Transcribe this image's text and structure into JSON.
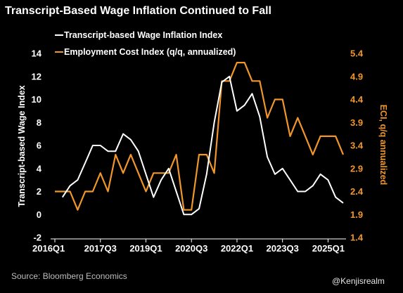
{
  "title": "Transcript-Based Wage Inflation Continued to Fall",
  "source": "Source: Bloomberg Economics",
  "watermark": "@Kenjisrealm",
  "colors": {
    "wage": "#ffffff",
    "eci": "#f0962a",
    "background": "#000000"
  },
  "chart_data": {
    "type": "line",
    "title": "Transcript-Based Wage Inflation Continued to Fall",
    "x_tick_labels": [
      "2016Q1",
      "2017Q3",
      "2019Q1",
      "2020Q3",
      "2022Q1",
      "2023Q3",
      "2025Q1"
    ],
    "left_axis": {
      "label": "Transcript-based Wage Index",
      "ylim": [
        -2,
        14
      ],
      "ticks": [
        -2,
        0,
        2,
        4,
        6,
        8,
        10,
        12,
        14
      ]
    },
    "right_axis": {
      "label": "ECI, q/q annualized",
      "ylim": [
        1.4,
        5.4
      ],
      "ticks": [
        "1.4",
        "1.9",
        "2.4",
        "2.9",
        "3.4",
        "3.9",
        "4.4",
        "4.9",
        "5.4"
      ]
    },
    "legend_placement": "top-left",
    "grid": false,
    "series": [
      {
        "name": "Transcript-based Wage Inflation Index",
        "axis": "left",
        "points": [
          [
            "2016Q2",
            1.5
          ],
          [
            "2016Q3",
            2.5
          ],
          [
            "2016Q4",
            3.0
          ],
          [
            "2017Q1",
            4.5
          ],
          [
            "2017Q2",
            6.0
          ],
          [
            "2017Q3",
            6.0
          ],
          [
            "2017Q4",
            5.5
          ],
          [
            "2018Q1",
            5.5
          ],
          [
            "2018Q2",
            7.0
          ],
          [
            "2018Q3",
            6.5
          ],
          [
            "2018Q4",
            5.5
          ],
          [
            "2019Q1",
            3.5
          ],
          [
            "2019Q2",
            1.5
          ],
          [
            "2019Q3",
            3.0
          ],
          [
            "2019Q4",
            4.0
          ],
          [
            "2020Q1",
            2.0
          ],
          [
            "2020Q2",
            0.0
          ],
          [
            "2020Q3",
            0.0
          ],
          [
            "2020Q4",
            0.5
          ],
          [
            "2021Q1",
            3.5
          ],
          [
            "2021Q2",
            8.0
          ],
          [
            "2021Q3",
            11.5
          ],
          [
            "2021Q4",
            12.0
          ],
          [
            "2022Q1",
            9.0
          ],
          [
            "2022Q2",
            9.5
          ],
          [
            "2022Q3",
            10.5
          ],
          [
            "2022Q4",
            8.5
          ],
          [
            "2023Q1",
            5.0
          ],
          [
            "2023Q2",
            3.5
          ],
          [
            "2023Q3",
            4.0
          ],
          [
            "2023Q4",
            3.0
          ],
          [
            "2024Q1",
            2.0
          ],
          [
            "2024Q2",
            2.0
          ],
          [
            "2024Q3",
            2.5
          ],
          [
            "2024Q4",
            3.5
          ],
          [
            "2025Q1",
            3.0
          ],
          [
            "2025Q2",
            1.5
          ],
          [
            "2025Q3",
            1.0
          ]
        ]
      },
      {
        "name": "Employment Cost Index (q/q, annualized)",
        "axis": "right",
        "points": [
          [
            "2016Q1",
            2.4
          ],
          [
            "2016Q2",
            2.4
          ],
          [
            "2016Q3",
            2.4
          ],
          [
            "2016Q4",
            2.0
          ],
          [
            "2017Q1",
            2.4
          ],
          [
            "2017Q2",
            2.4
          ],
          [
            "2017Q3",
            2.8
          ],
          [
            "2017Q4",
            2.4
          ],
          [
            "2018Q1",
            3.2
          ],
          [
            "2018Q2",
            2.8
          ],
          [
            "2018Q3",
            3.2
          ],
          [
            "2018Q4",
            2.8
          ],
          [
            "2019Q1",
            2.4
          ],
          [
            "2019Q2",
            2.8
          ],
          [
            "2019Q3",
            2.8
          ],
          [
            "2019Q4",
            2.8
          ],
          [
            "2020Q1",
            3.2
          ],
          [
            "2020Q2",
            2.0
          ],
          [
            "2020Q3",
            2.0
          ],
          [
            "2020Q4",
            3.2
          ],
          [
            "2021Q1",
            3.2
          ],
          [
            "2021Q2",
            2.8
          ],
          [
            "2021Q3",
            4.8
          ],
          [
            "2021Q4",
            4.8
          ],
          [
            "2022Q1",
            5.2
          ],
          [
            "2022Q2",
            5.2
          ],
          [
            "2022Q3",
            4.8
          ],
          [
            "2022Q4",
            4.8
          ],
          [
            "2023Q1",
            4.0
          ],
          [
            "2023Q2",
            4.4
          ],
          [
            "2023Q3",
            4.4
          ],
          [
            "2023Q4",
            3.6
          ],
          [
            "2024Q1",
            4.0
          ],
          [
            "2024Q2",
            3.6
          ],
          [
            "2024Q3",
            3.2
          ],
          [
            "2024Q4",
            3.6
          ],
          [
            "2025Q1",
            3.6
          ],
          [
            "2025Q2",
            3.6
          ],
          [
            "2025Q3",
            3.2
          ]
        ]
      }
    ]
  }
}
